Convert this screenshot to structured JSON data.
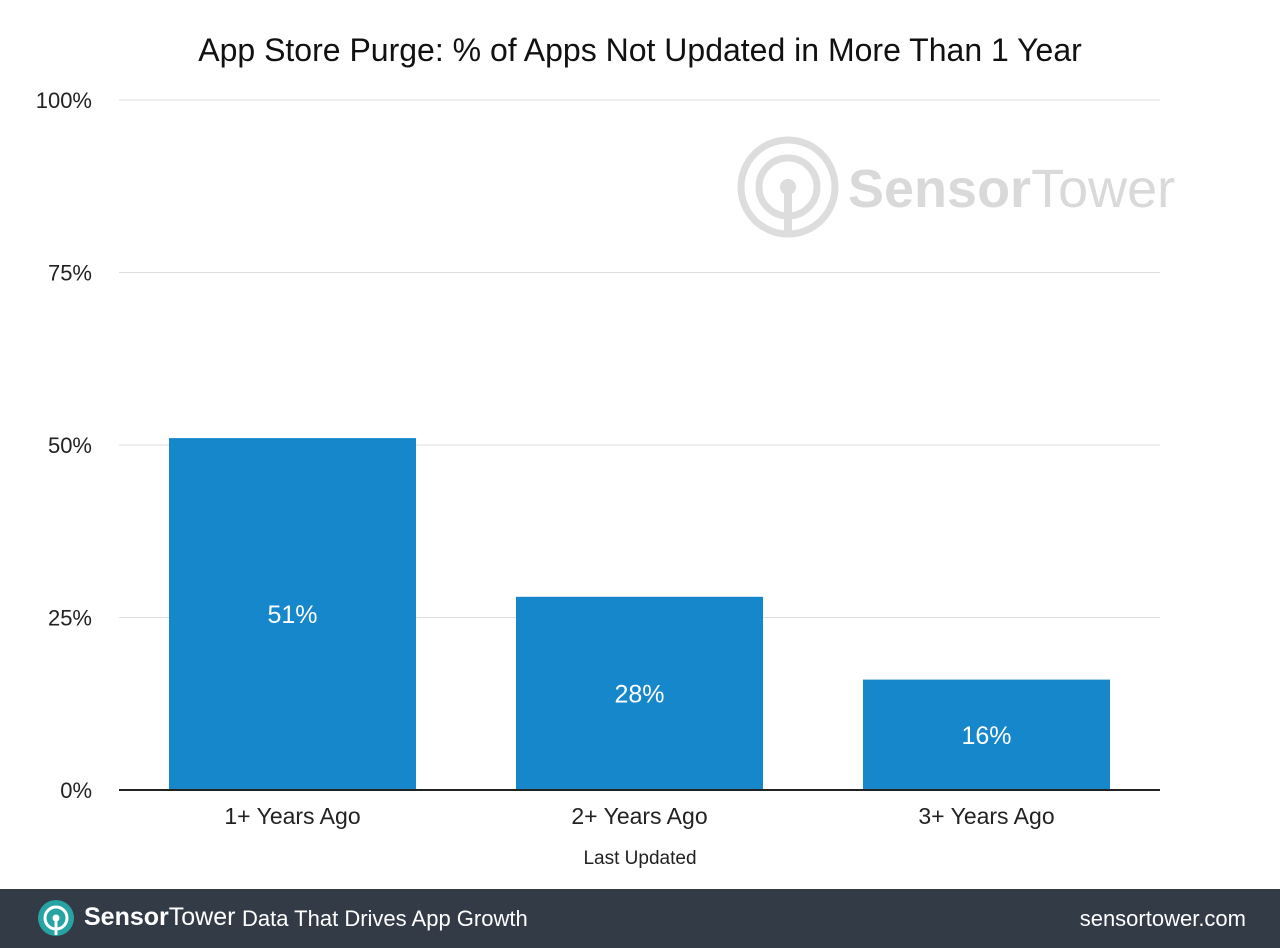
{
  "chart_data": {
    "type": "bar",
    "title": "App Store Purge: % of Apps Not Updated in More Than 1 Year",
    "xlabel": "Last Updated",
    "ylabel": "",
    "categories": [
      "1+ Years Ago",
      "2+ Years Ago",
      "3+ Years Ago"
    ],
    "values": [
      51,
      28,
      16
    ],
    "data_labels": [
      "51%",
      "28%",
      "16%"
    ],
    "ylim": [
      0,
      100
    ],
    "yticks": [
      0,
      25,
      50,
      75,
      100
    ],
    "ytick_labels": [
      "0%",
      "25%",
      "50%",
      "75%",
      "100%"
    ],
    "grid": true,
    "bar_color": "#1787cc"
  },
  "watermark": {
    "brand_bold": "Sensor",
    "brand_light": "Tower",
    "icon": "sensortower-logo-icon"
  },
  "footer": {
    "brand_bold": "Sensor",
    "brand_light": "Tower",
    "tagline": "Data That Drives App Growth",
    "site": "sensortower.com",
    "background": "#333b47",
    "logo_color": "#27a3a3"
  }
}
